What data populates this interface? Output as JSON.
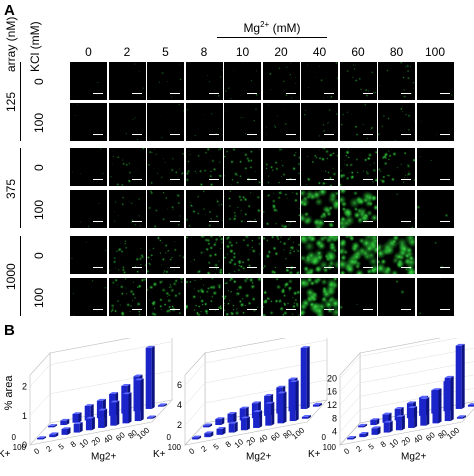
{
  "panel_a": {
    "letter": "A",
    "header_array": "array (nM)",
    "header_kcl": "KCl (mM)",
    "header_mg": "Mg2+ (mM)",
    "mg_columns": [
      "0",
      "2",
      "5",
      "8",
      "10",
      "20",
      "40",
      "60",
      "80",
      "100"
    ],
    "groups": [
      {
        "array": "125",
        "rows": [
          {
            "kcl": "0"
          },
          {
            "kcl": "100"
          }
        ]
      },
      {
        "array": "375",
        "rows": [
          {
            "kcl": "0"
          },
          {
            "kcl": "100"
          }
        ]
      },
      {
        "array": "1000",
        "rows": [
          {
            "kcl": "0"
          },
          {
            "kcl": "100"
          }
        ]
      }
    ]
  },
  "panel_b": {
    "letter": "B",
    "ylabel": "% area",
    "k_label": "K+",
    "mg_label": "Mg2+",
    "mg_ticks": [
      "0",
      "2",
      "5",
      "8",
      "10",
      "20",
      "40",
      "60",
      "80",
      "100"
    ],
    "k_ticks": [
      "0",
      "100"
    ],
    "bar_color": "#1a24c8",
    "charts": [
      {
        "id": "array-125",
        "yticks": [
          "0",
          "1",
          "2"
        ],
        "ymax": 2.4,
        "back_row": [
          0.05,
          0.15,
          0.3,
          0.5,
          0.6,
          0.75,
          0.95,
          1.2,
          2.1,
          0.05
        ],
        "front_row": [
          0.05,
          0.1,
          0.2,
          0.3,
          0.4,
          0.6,
          0.8,
          1.0,
          1.4,
          0.05
        ]
      },
      {
        "id": "array-375",
        "yticks": [
          "2",
          "4",
          "6"
        ],
        "ymax": 7.0,
        "back_row": [
          0.2,
          0.6,
          0.9,
          1.2,
          1.5,
          2.0,
          2.6,
          3.2,
          6.1,
          0.2
        ],
        "front_row": [
          0.2,
          0.4,
          0.6,
          0.9,
          1.2,
          1.6,
          2.2,
          3.0,
          3.9,
          0.2
        ]
      },
      {
        "id": "array-1000",
        "yticks": [
          "4",
          "8",
          "12",
          "16",
          "20"
        ],
        "ymax": 21,
        "back_row": [
          0.5,
          1.5,
          2.5,
          3.5,
          4.5,
          5.5,
          7,
          9,
          19,
          0.5
        ],
        "front_row": [
          0.5,
          1,
          2,
          3,
          4,
          6,
          8,
          10,
          13,
          0.5
        ]
      }
    ]
  }
}
